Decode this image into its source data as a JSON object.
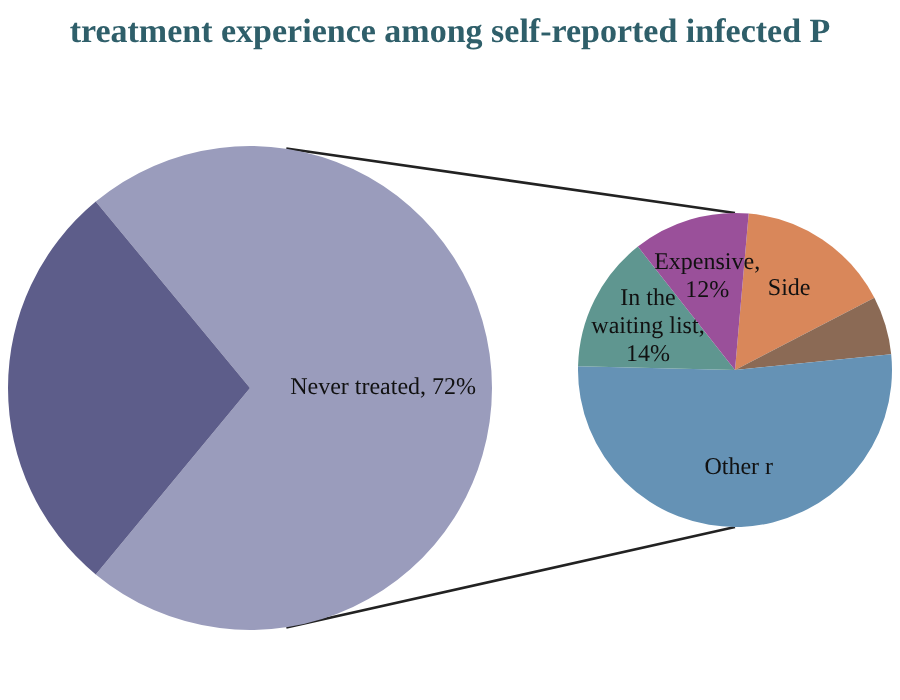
{
  "chart_data": [
    {
      "type": "pie",
      "title": "treatment experience among self-reported infected P",
      "categories": [
        "Never treated",
        null
      ],
      "values": [
        72,
        28
      ],
      "colors": [
        "#9a9cbc",
        "#5d5d8a"
      ],
      "value_labels": [
        ", 72%",
        null
      ]
    },
    {
      "type": "pie",
      "categories": [
        "Side",
        null,
        "Other r",
        "In the waiting list",
        "Expensive"
      ],
      "values": [
        16,
        6,
        52,
        14,
        12
      ],
      "colors": [
        "#d9875a",
        "#8b6a55",
        "#6592b5",
        "#5f9690",
        "#9a509a"
      ],
      "value_labels": [
        null,
        null,
        null,
        ", 14%",
        ", 12%"
      ]
    }
  ]
}
